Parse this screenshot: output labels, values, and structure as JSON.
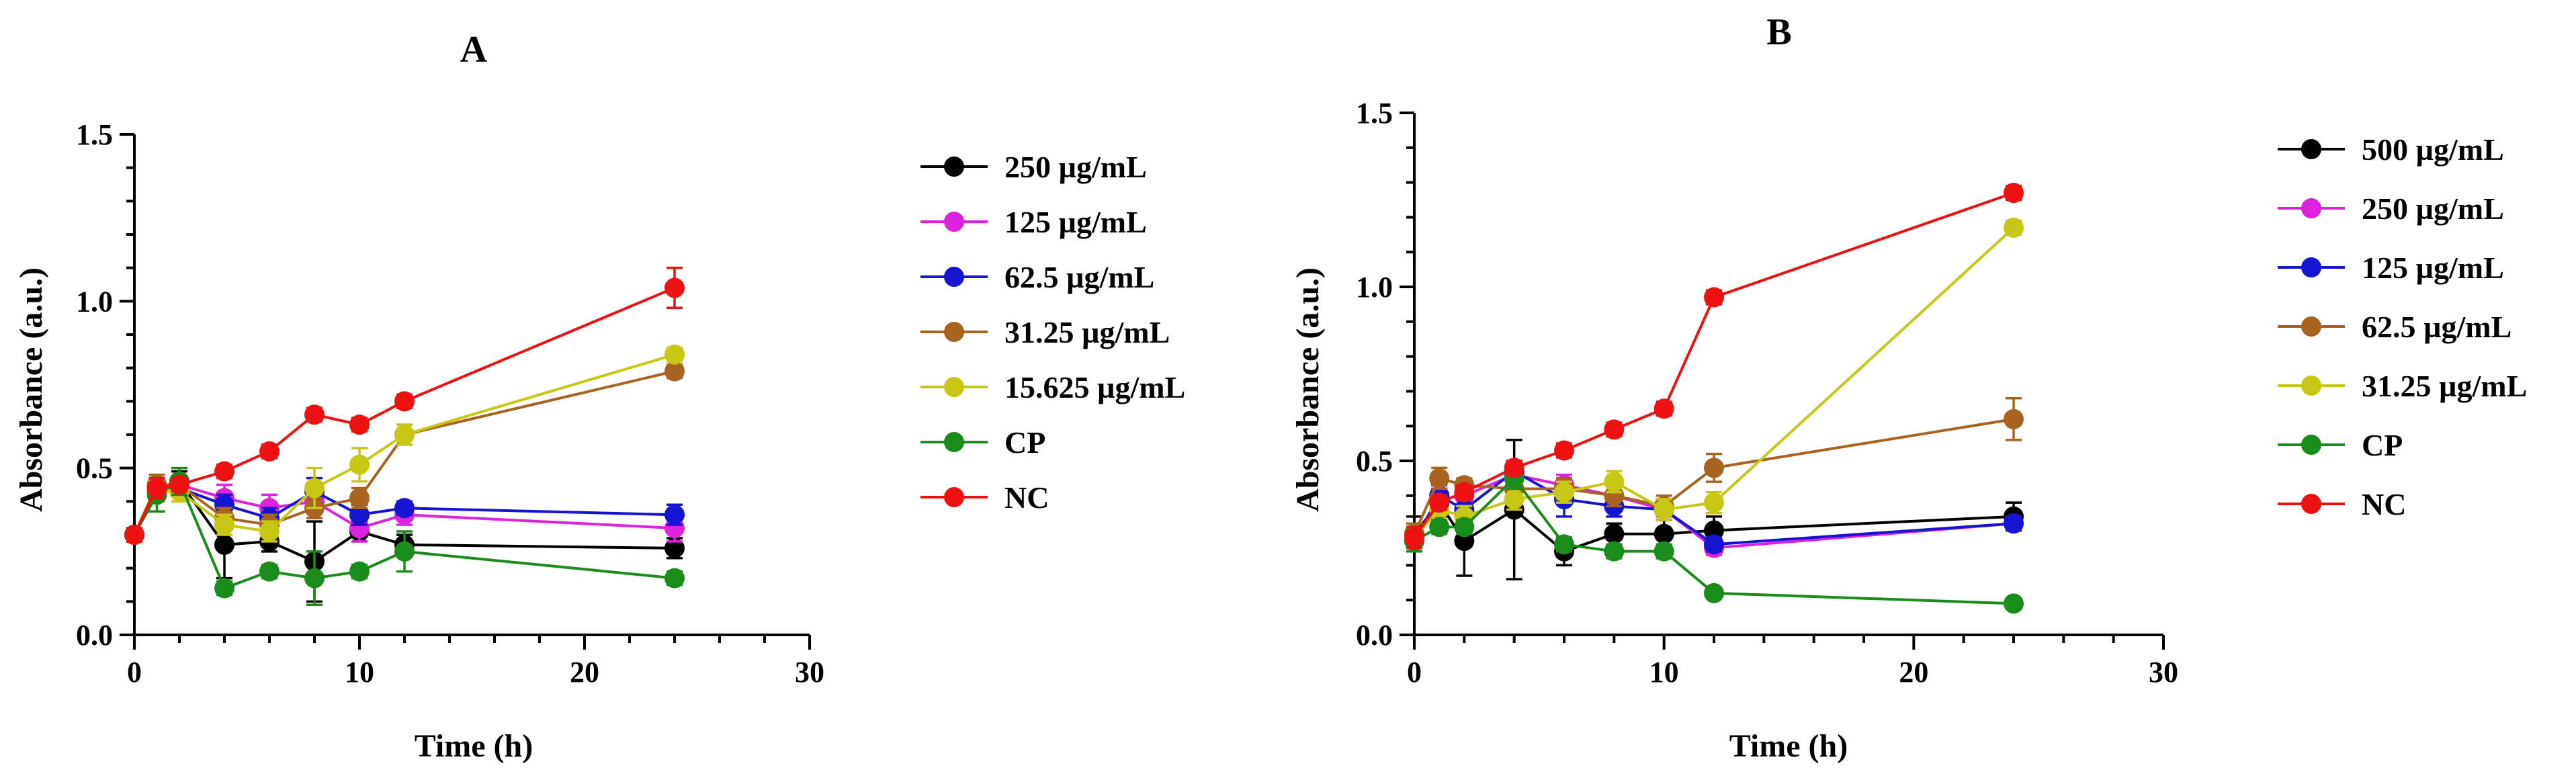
{
  "chart_data": [
    {
      "type": "line",
      "panel_label": "A",
      "xlabel": "Time (h)",
      "ylabel": "Absorbance (a.u.)",
      "xlim": [
        0,
        30
      ],
      "ylim": [
        0,
        1.5
      ],
      "x_ticks": [
        0,
        10,
        20,
        30
      ],
      "y_ticks": [
        0.0,
        0.5,
        1.0,
        1.5
      ],
      "x_tick_labels": [
        "0",
        "10",
        "20",
        "30"
      ],
      "y_tick_labels": [
        "0.0",
        "0.5",
        "1.0",
        "1.5"
      ],
      "grid": false,
      "legend_position": "right",
      "series": [
        {
          "name": "250 µg/mL",
          "color": "#000000",
          "x": [
            0,
            1,
            2,
            4,
            6,
            8,
            10,
            12,
            24
          ],
          "y": [
            0.3,
            0.44,
            0.46,
            0.27,
            0.28,
            0.22,
            0.31,
            0.27,
            0.26
          ],
          "error": [
            0.02,
            0.03,
            0.03,
            0.1,
            0.03,
            0.12,
            0.03,
            0.03,
            0.03
          ]
        },
        {
          "name": "125 µg/mL",
          "color": "#dd22dd",
          "x": [
            0,
            1,
            2,
            4,
            6,
            8,
            10,
            12,
            24
          ],
          "y": [
            0.3,
            0.43,
            0.45,
            0.41,
            0.38,
            0.4,
            0.32,
            0.36,
            0.32
          ],
          "error": [
            0.02,
            0.03,
            0.02,
            0.04,
            0.04,
            0.05,
            0.04,
            0.03,
            0.04
          ]
        },
        {
          "name": "62.5 µg/mL",
          "color": "#1414d2",
          "x": [
            0,
            1,
            2,
            4,
            6,
            8,
            10,
            12,
            24
          ],
          "y": [
            0.3,
            0.44,
            0.44,
            0.39,
            0.35,
            0.43,
            0.36,
            0.38,
            0.36
          ],
          "error": [
            0.02,
            0.03,
            0.02,
            0.03,
            0.03,
            0.04,
            0.03,
            0.02,
            0.03
          ]
        },
        {
          "name": "31.25 µg/mL",
          "color": "#a8641e",
          "x": [
            0,
            1,
            2,
            4,
            6,
            8,
            10,
            12,
            24
          ],
          "y": [
            0.3,
            0.45,
            0.45,
            0.35,
            0.33,
            0.38,
            0.41,
            0.6,
            0.79
          ],
          "error": [
            0.02,
            0.03,
            0.02,
            0.03,
            0.03,
            0.03,
            0.03,
            0.03,
            0.02
          ]
        },
        {
          "name": "15.625 µg/mL",
          "color": "#c8c814",
          "x": [
            0,
            1,
            2,
            4,
            6,
            8,
            10,
            12,
            24
          ],
          "y": [
            0.3,
            0.43,
            0.43,
            0.33,
            0.31,
            0.44,
            0.51,
            0.6,
            0.84
          ],
          "error": [
            0.02,
            0.03,
            0.03,
            0.03,
            0.03,
            0.06,
            0.05,
            0.03,
            0.02
          ]
        },
        {
          "name": "CP",
          "color": "#1a8c1a",
          "x": [
            0,
            1,
            2,
            4,
            6,
            8,
            10,
            12,
            24
          ],
          "y": [
            0.3,
            0.42,
            0.46,
            0.14,
            0.19,
            0.17,
            0.19,
            0.25,
            0.17
          ],
          "error": [
            0.02,
            0.05,
            0.04,
            0.02,
            0.02,
            0.08,
            0.02,
            0.06,
            0.02
          ]
        },
        {
          "name": "NC",
          "color": "#ee1111",
          "x": [
            0,
            1,
            2,
            4,
            6,
            8,
            10,
            12,
            24
          ],
          "y": [
            0.3,
            0.44,
            0.45,
            0.49,
            0.55,
            0.66,
            0.63,
            0.7,
            1.04
          ],
          "error": [
            0.02,
            0.03,
            0.02,
            0.02,
            0.02,
            0.02,
            0.02,
            0.02,
            0.06
          ]
        }
      ]
    },
    {
      "type": "line",
      "panel_label": "B",
      "xlabel": "Time (h)",
      "ylabel": "Absorbance (a.u.)",
      "xlim": [
        0,
        30
      ],
      "ylim": [
        0,
        1.5
      ],
      "x_ticks": [
        0,
        10,
        20,
        30
      ],
      "y_ticks": [
        0.0,
        0.5,
        1.0,
        1.5
      ],
      "x_tick_labels": [
        "0",
        "10",
        "20",
        "30"
      ],
      "y_tick_labels": [
        "0.0",
        "0.5",
        "1.0",
        "1.5"
      ],
      "grid": false,
      "legend_position": "right",
      "series": [
        {
          "name": "500 µg/mL",
          "color": "#000000",
          "x": [
            0,
            1,
            2,
            4,
            6,
            8,
            10,
            12,
            24
          ],
          "y": [
            0.29,
            0.38,
            0.27,
            0.36,
            0.24,
            0.29,
            0.29,
            0.3,
            0.34
          ],
          "error": [
            0.05,
            0.04,
            0.1,
            0.2,
            0.04,
            0.03,
            0.04,
            0.04,
            0.04
          ]
        },
        {
          "name": "250 µg/mL",
          "color": "#dd22dd",
          "x": [
            0,
            1,
            2,
            4,
            6,
            8,
            10,
            12,
            24
          ],
          "y": [
            0.27,
            0.39,
            0.4,
            0.46,
            0.43,
            0.4,
            0.36,
            0.25,
            0.32
          ],
          "error": [
            0.03,
            0.03,
            0.03,
            0.03,
            0.03,
            0.03,
            0.03,
            0.02,
            0.02
          ]
        },
        {
          "name": "125 µg/mL",
          "color": "#1414d2",
          "x": [
            0,
            1,
            2,
            4,
            6,
            8,
            10,
            12,
            24
          ],
          "y": [
            0.27,
            0.4,
            0.36,
            0.47,
            0.39,
            0.37,
            0.36,
            0.26,
            0.32
          ],
          "error": [
            0.03,
            0.03,
            0.03,
            0.03,
            0.05,
            0.03,
            0.03,
            0.02,
            0.02
          ]
        },
        {
          "name": "62.5 µg/mL",
          "color": "#a8641e",
          "x": [
            0,
            1,
            2,
            4,
            6,
            8,
            10,
            12,
            24
          ],
          "y": [
            0.29,
            0.45,
            0.43,
            0.42,
            0.42,
            0.4,
            0.37,
            0.48,
            0.62
          ],
          "error": [
            0.03,
            0.03,
            0.02,
            0.03,
            0.03,
            0.03,
            0.03,
            0.04,
            0.06
          ]
        },
        {
          "name": "31.25 µg/mL",
          "color": "#c8c814",
          "x": [
            0,
            1,
            2,
            4,
            6,
            8,
            10,
            12,
            24
          ],
          "y": [
            0.28,
            0.36,
            0.34,
            0.39,
            0.41,
            0.44,
            0.36,
            0.38,
            1.17
          ],
          "error": [
            0.03,
            0.03,
            0.03,
            0.03,
            0.03,
            0.03,
            0.03,
            0.03,
            0.02
          ]
        },
        {
          "name": "CP",
          "color": "#1a8c1a",
          "x": [
            0,
            1,
            2,
            4,
            6,
            8,
            10,
            12,
            24
          ],
          "y": [
            0.27,
            0.31,
            0.31,
            0.45,
            0.26,
            0.24,
            0.24,
            0.12,
            0.09
          ],
          "error": [
            0.03,
            0.02,
            0.02,
            0.03,
            0.02,
            0.02,
            0.02,
            0.01,
            0.01
          ]
        },
        {
          "name": "NC",
          "color": "#ee1111",
          "x": [
            0,
            1,
            2,
            4,
            6,
            8,
            10,
            12,
            24
          ],
          "y": [
            0.28,
            0.38,
            0.41,
            0.48,
            0.53,
            0.59,
            0.65,
            0.97,
            1.27
          ],
          "error": [
            0.03,
            0.02,
            0.02,
            0.02,
            0.02,
            0.02,
            0.02,
            0.02,
            0.02
          ]
        }
      ]
    }
  ]
}
